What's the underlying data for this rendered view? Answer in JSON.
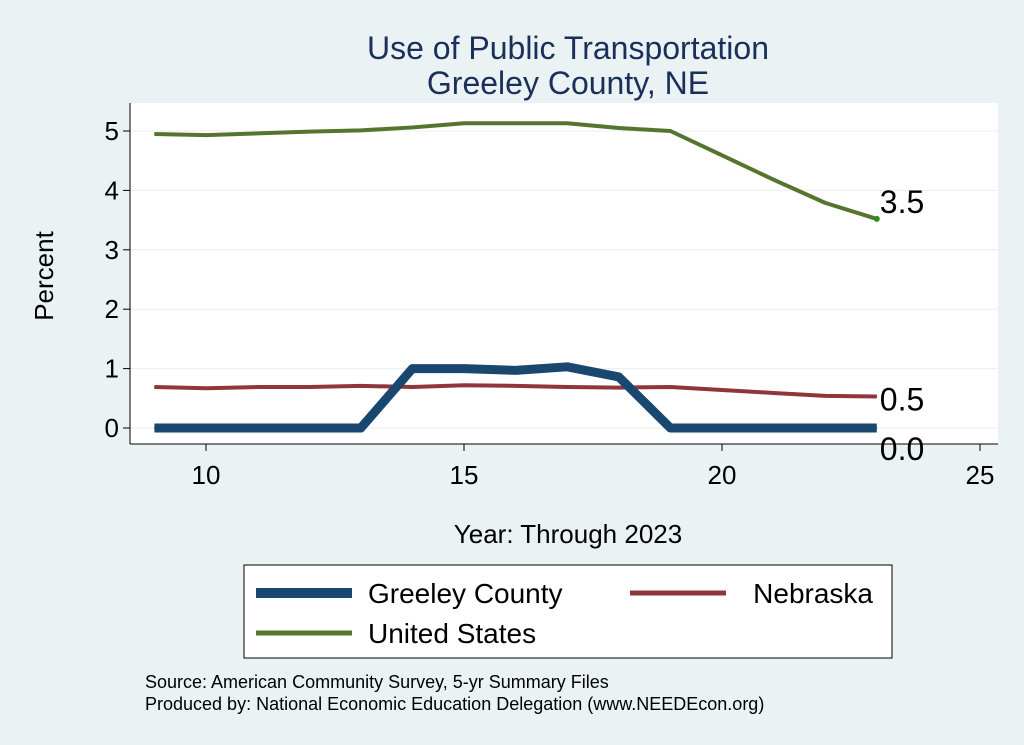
{
  "chart_data": {
    "type": "line",
    "title_lines": [
      "Use of Public Transportation",
      "Greeley County, NE"
    ],
    "xlabel": "Year: Through 2023",
    "ylabel": "Percent",
    "xlim": [
      9,
      25
    ],
    "ylim": [
      0,
      5.2
    ],
    "xticks": [
      10,
      15,
      20,
      25
    ],
    "yticks": [
      0,
      1,
      2,
      3,
      4,
      5
    ],
    "grid": true,
    "legend_position": "bottom",
    "x": [
      9,
      10,
      11,
      12,
      13,
      14,
      15,
      16,
      17,
      18,
      19,
      20,
      21,
      22,
      23
    ],
    "series": [
      {
        "name": "Greeley County",
        "color": "#1a476f",
        "values": [
          0,
          0,
          0,
          0,
          0,
          1.0,
          1.0,
          0.97,
          1.03,
          0.86,
          0,
          0,
          0,
          0,
          0
        ],
        "end_label": "0.0"
      },
      {
        "name": "Nebraska",
        "color": "#90353b",
        "values": [
          0.69,
          0.67,
          0.69,
          0.69,
          0.71,
          0.69,
          0.72,
          0.71,
          0.69,
          0.68,
          0.69,
          0.64,
          0.59,
          0.54,
          0.53
        ],
        "end_label": "0.5"
      },
      {
        "name": "United States",
        "color": "#55752f",
        "values": [
          4.95,
          4.93,
          4.96,
          4.99,
          5.01,
          5.06,
          5.13,
          5.13,
          5.13,
          5.05,
          5.0,
          4.59,
          4.18,
          3.79,
          3.52
        ],
        "end_label": "3.5"
      }
    ],
    "notes": [
      "Source: American Community Survey, 5-yr Summary Files",
      "Produced by: National Economic Education Delegation (www.NEEDEcon.org)"
    ]
  }
}
